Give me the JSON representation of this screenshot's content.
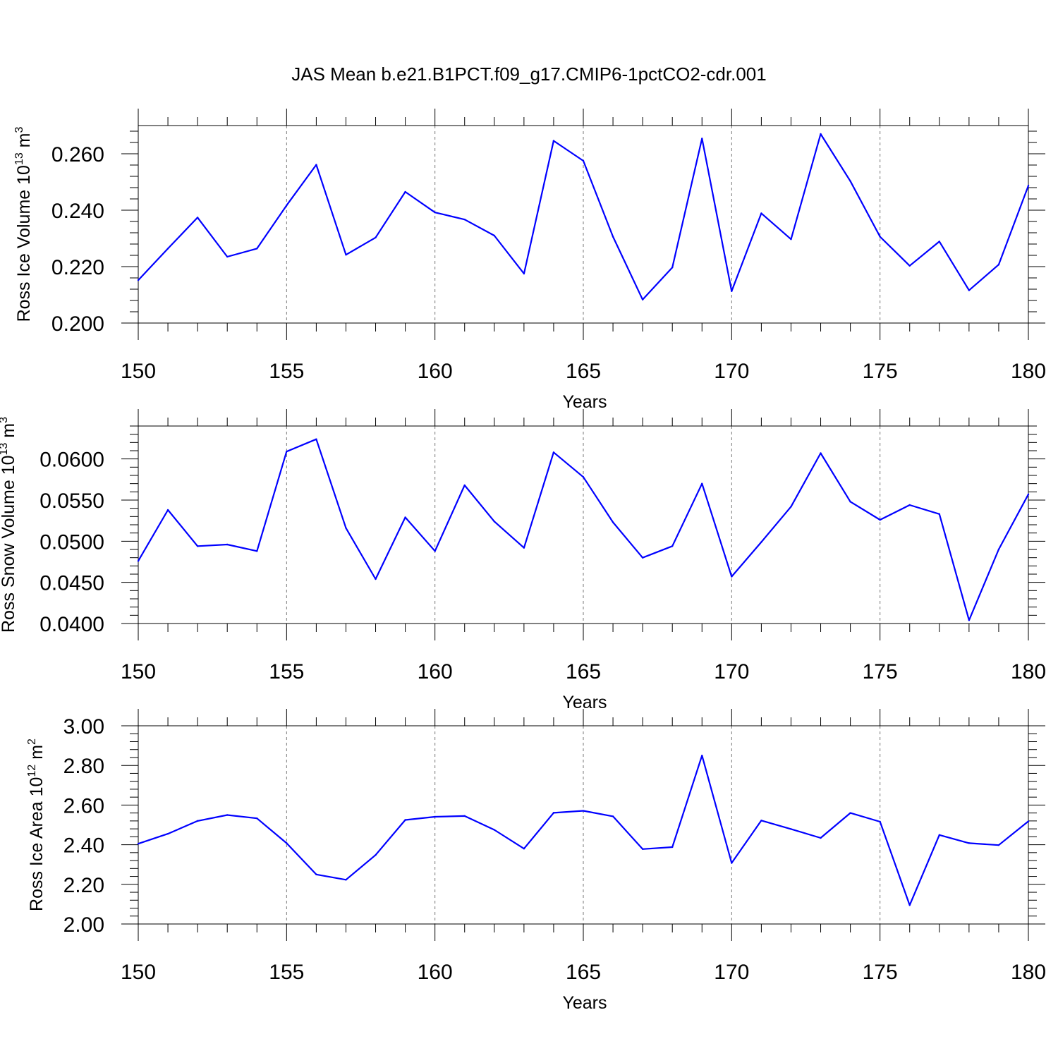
{
  "title": "JAS Mean b.e21.B1PCT.f09_g17.CMIP6-1pctCO2-cdr.001",
  "chart_data": [
    {
      "type": "line",
      "xlabel": "Years",
      "ylabel": "Ross Ice Volume 10",
      "ylabel_sup": "13",
      "ylabel_unit": "m",
      "ylabel_unit_sup": "3",
      "xlim": [
        150,
        180
      ],
      "ylim": [
        0.2,
        0.27
      ],
      "xticks": [
        150,
        155,
        160,
        165,
        170,
        175,
        180
      ],
      "yticks": [
        0.2,
        0.22,
        0.24,
        0.26
      ],
      "yticklabels": [
        "0.200",
        "0.220",
        "0.240",
        "0.260"
      ],
      "x": [
        150,
        151,
        152,
        153,
        154,
        155,
        156,
        157,
        158,
        159,
        160,
        161,
        162,
        163,
        164,
        165,
        166,
        167,
        168,
        169,
        170,
        171,
        172,
        173,
        174,
        175,
        176,
        177,
        178,
        179,
        180
      ],
      "values": [
        0.2152,
        0.2264,
        0.2374,
        0.2235,
        0.2264,
        0.2417,
        0.2561,
        0.2242,
        0.2303,
        0.2465,
        0.2392,
        0.2367,
        0.231,
        0.2175,
        0.2646,
        0.2575,
        0.2306,
        0.2083,
        0.2197,
        0.2654,
        0.2113,
        0.2389,
        0.2297,
        0.267,
        0.2503,
        0.2306,
        0.2203,
        0.2289,
        0.2116,
        0.2207,
        0.2487
      ],
      "grid": "dashed vertical at major x ticks"
    },
    {
      "type": "line",
      "xlabel": "Years",
      "ylabel": "Ross Snow Volume 10",
      "ylabel_sup": "13",
      "ylabel_unit": "m",
      "ylabel_unit_sup": "3",
      "xlim": [
        150,
        180
      ],
      "ylim": [
        0.04,
        0.064
      ],
      "xticks": [
        150,
        155,
        160,
        165,
        170,
        175,
        180
      ],
      "yticks": [
        0.04,
        0.045,
        0.05,
        0.055,
        0.06
      ],
      "yticklabels": [
        "0.0400",
        "0.0450",
        "0.0500",
        "0.0550",
        "0.0600"
      ],
      "x": [
        150,
        151,
        152,
        153,
        154,
        155,
        156,
        157,
        158,
        159,
        160,
        161,
        162,
        163,
        164,
        165,
        166,
        167,
        168,
        169,
        170,
        171,
        172,
        173,
        174,
        175,
        176,
        177,
        178,
        179,
        180
      ],
      "values": [
        0.0476,
        0.0538,
        0.0494,
        0.0496,
        0.0488,
        0.0609,
        0.0624,
        0.0516,
        0.0454,
        0.0529,
        0.0488,
        0.0568,
        0.0524,
        0.0492,
        0.0608,
        0.0578,
        0.0523,
        0.048,
        0.0494,
        0.057,
        0.0457,
        0.0499,
        0.0542,
        0.0607,
        0.0548,
        0.0526,
        0.0544,
        0.0533,
        0.0404,
        0.049,
        0.0557
      ],
      "grid": "dashed vertical at major x ticks"
    },
    {
      "type": "line",
      "xlabel": "Years",
      "ylabel": "Ross Ice Area 10",
      "ylabel_sup": "12",
      "ylabel_unit": "m",
      "ylabel_unit_sup": "2",
      "xlim": [
        150,
        180
      ],
      "ylim": [
        2.0,
        3.0
      ],
      "xticks": [
        150,
        155,
        160,
        165,
        170,
        175,
        180
      ],
      "yticks": [
        2.0,
        2.2,
        2.4,
        2.6,
        2.8,
        3.0
      ],
      "yticklabels": [
        "2.00",
        "2.20",
        "2.40",
        "2.60",
        "2.80",
        "3.00"
      ],
      "x": [
        150,
        151,
        152,
        153,
        154,
        155,
        156,
        157,
        158,
        159,
        160,
        161,
        162,
        163,
        164,
        165,
        166,
        167,
        168,
        169,
        170,
        171,
        172,
        173,
        174,
        175,
        176,
        177,
        178,
        179,
        180
      ],
      "values": [
        2.405,
        2.455,
        2.52,
        2.55,
        2.533,
        2.408,
        2.25,
        2.223,
        2.348,
        2.525,
        2.541,
        2.545,
        2.475,
        2.38,
        2.561,
        2.571,
        2.543,
        2.378,
        2.388,
        2.85,
        2.308,
        2.522,
        2.479,
        2.434,
        2.56,
        2.516,
        2.095,
        2.449,
        2.408,
        2.398,
        2.518
      ],
      "grid": "dashed vertical at major x ticks"
    }
  ]
}
